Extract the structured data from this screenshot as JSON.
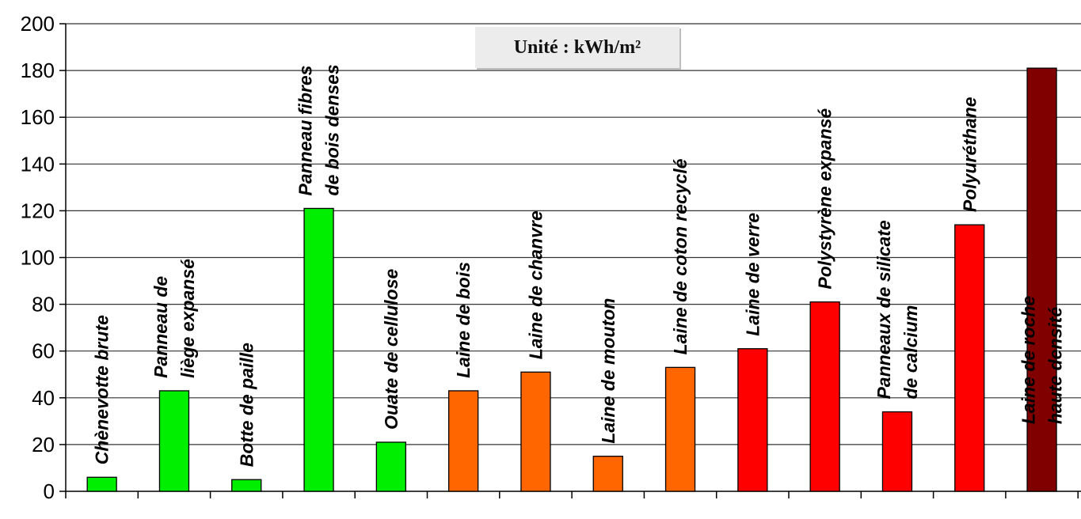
{
  "unit_box": {
    "text": "Unité : kWh/m²"
  },
  "chart_data": {
    "type": "bar",
    "title": "",
    "xlabel": "",
    "ylabel": "",
    "ylim": [
      0,
      200
    ],
    "yticks": [
      0,
      20,
      40,
      60,
      80,
      100,
      120,
      140,
      160,
      180,
      200
    ],
    "grid": true,
    "legend": "none",
    "categories": [
      [
        "Chènevotte brute"
      ],
      [
        "Panneau de",
        "liège expansé"
      ],
      [
        "Botte de paille"
      ],
      [
        "Panneau fibres",
        "de bois denses"
      ],
      [
        "Ouate de cellulose"
      ],
      [
        "Laine de bois"
      ],
      [
        "Laine de chanvre"
      ],
      [
        "Laine de mouton"
      ],
      [
        "Laine de coton recyclé"
      ],
      [
        "Laine de verre"
      ],
      [
        "Polystyrène expansé"
      ],
      [
        "Panneaux de silicate",
        "de calcium"
      ],
      [
        "Polyuréthane"
      ],
      [
        "Laine de roche",
        "haute densité"
      ]
    ],
    "values": [
      6,
      43,
      5,
      121,
      21,
      43,
      51,
      15,
      53,
      61,
      81,
      34,
      114,
      181
    ],
    "colors": [
      "#00ee00",
      "#00ee00",
      "#00ee00",
      "#00ee00",
      "#00ee00",
      "#ff6600",
      "#ff6600",
      "#ff6600",
      "#ff6600",
      "#ff0000",
      "#ff0000",
      "#ff0000",
      "#ff0000",
      "#800000"
    ]
  }
}
